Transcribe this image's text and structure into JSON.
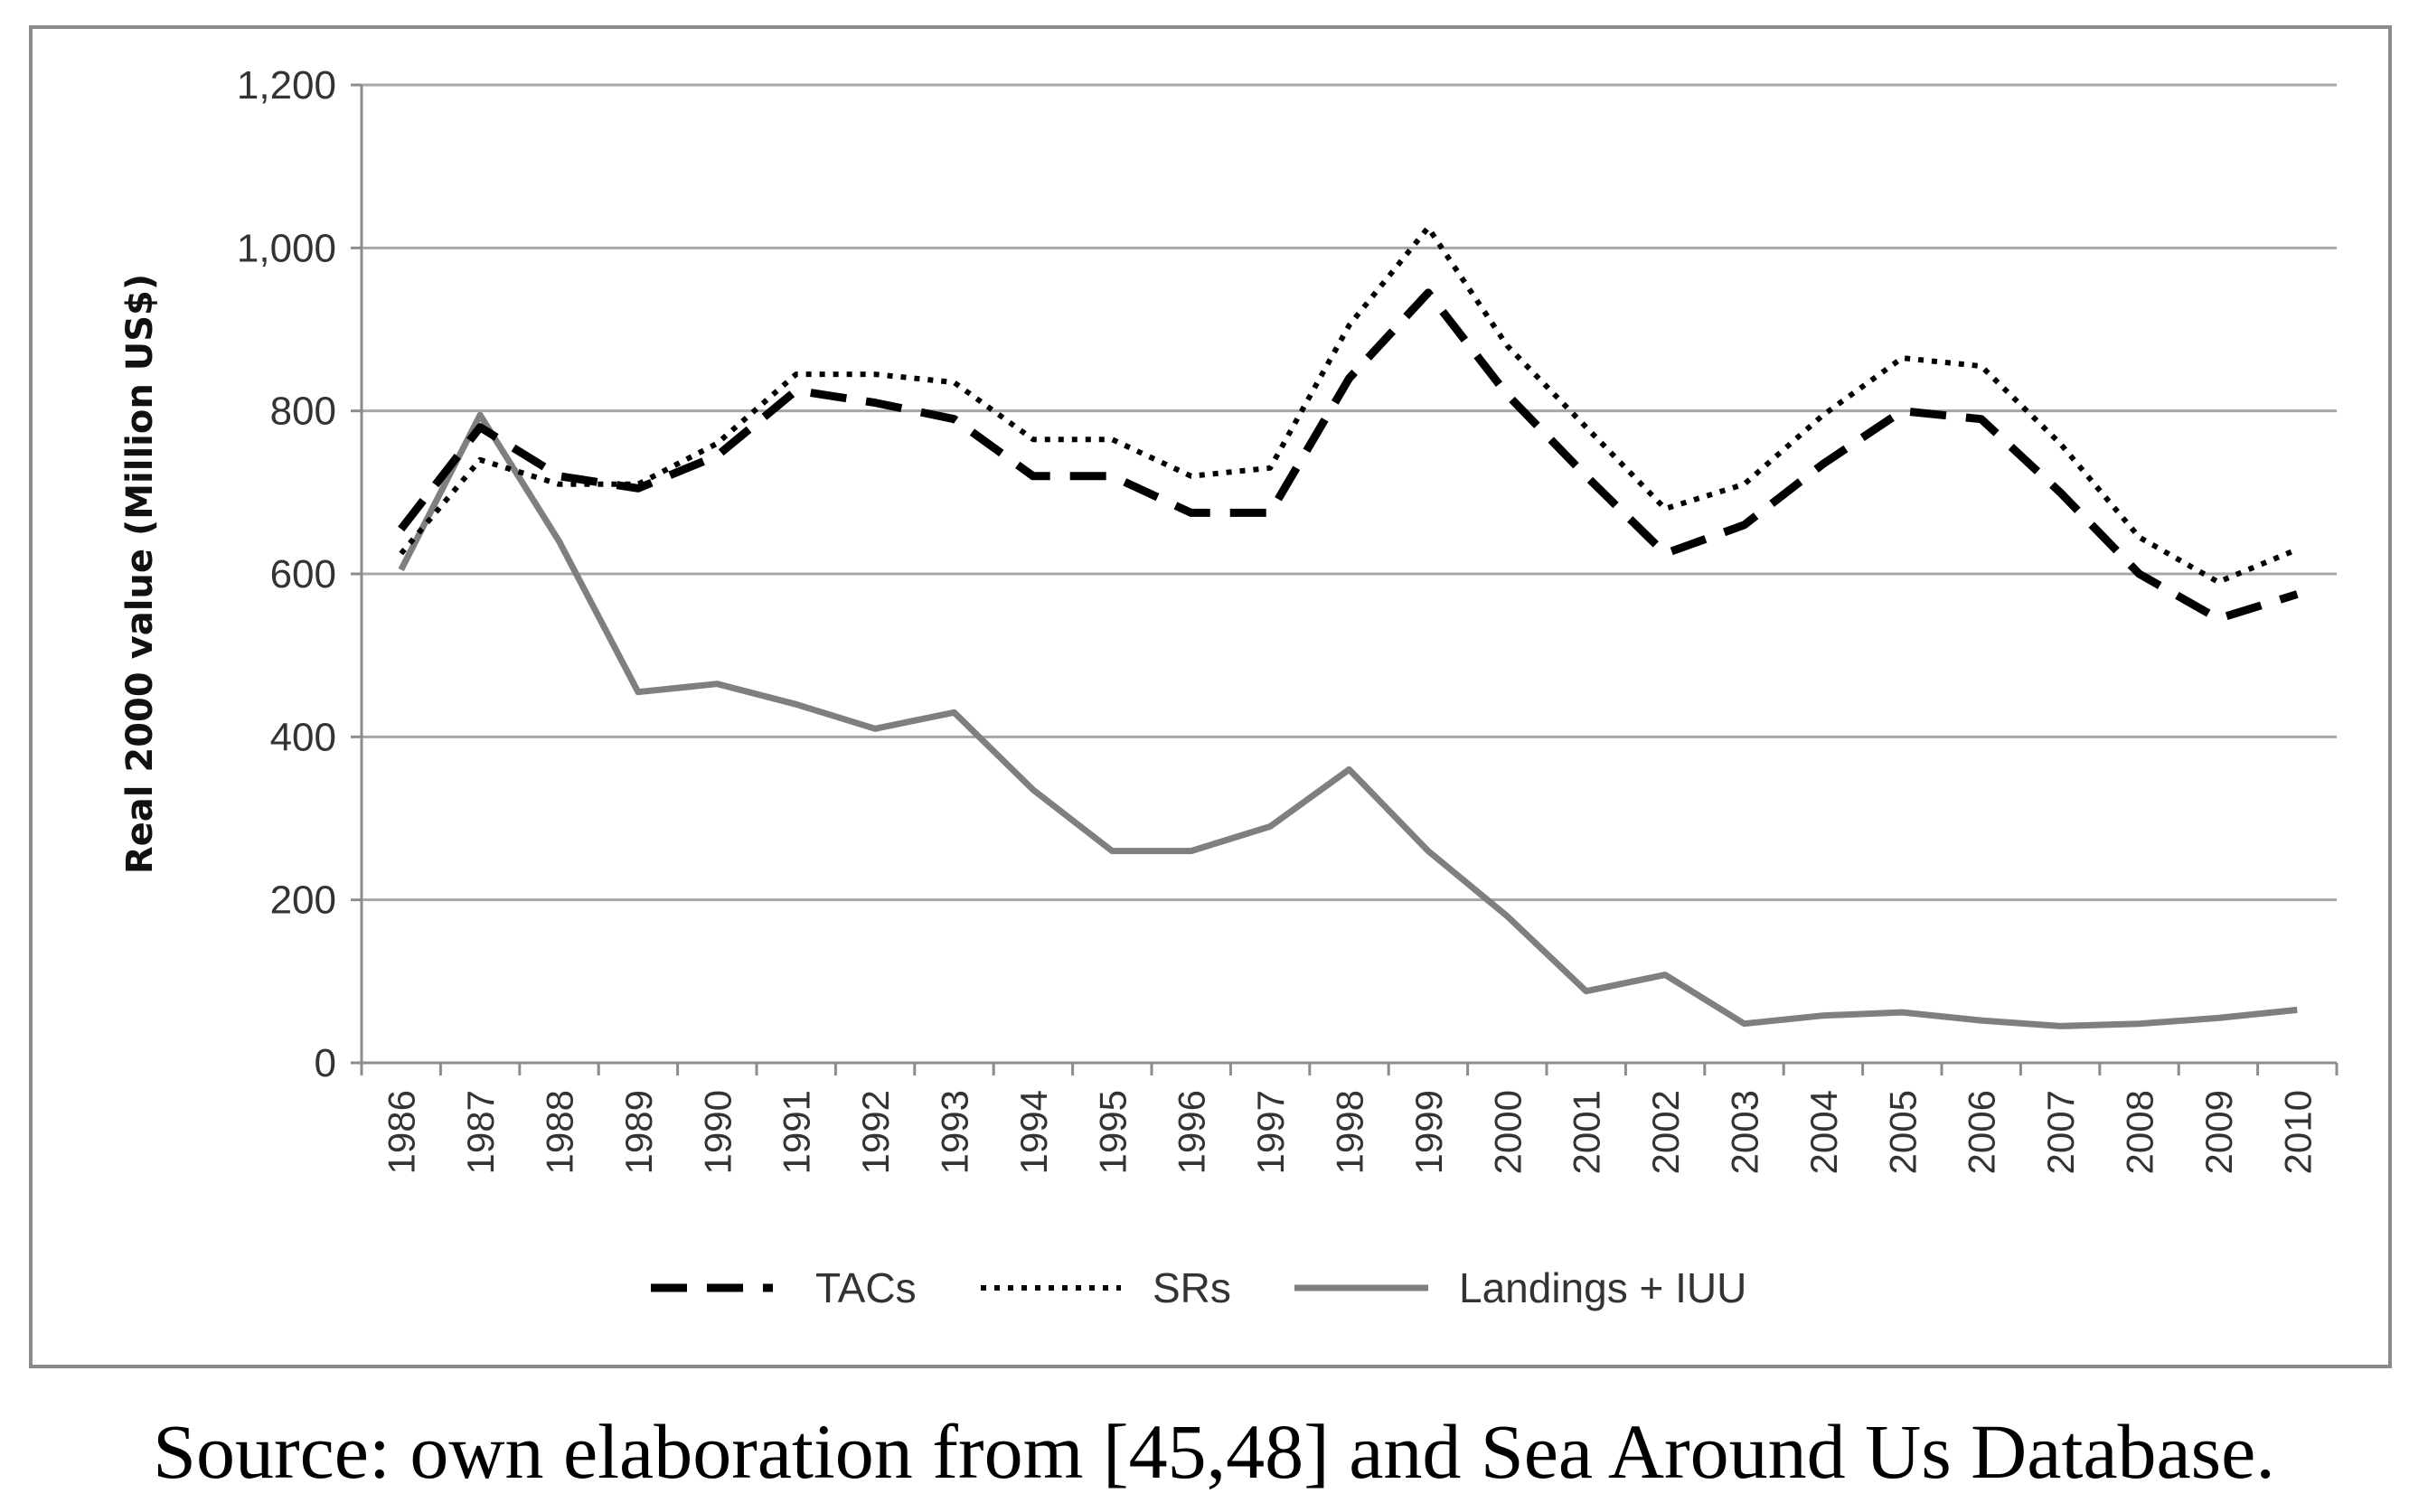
{
  "chart_data": {
    "type": "line",
    "title": "",
    "xlabel": "",
    "ylabel": "Real 2000 value (Million US$)",
    "ylim": [
      0,
      1200
    ],
    "yticks": [
      0,
      200,
      400,
      600,
      800,
      1000,
      1200
    ],
    "ytick_labels": [
      "0",
      "200",
      "400",
      "600",
      "800",
      "1,000",
      "1,200"
    ],
    "grid": "horizontal",
    "legend_position": "bottom",
    "x": [
      "1986",
      "1987",
      "1988",
      "1989",
      "1990",
      "1991",
      "1992",
      "1993",
      "1994",
      "1995",
      "1996",
      "1997",
      "1998",
      "1999",
      "2000",
      "2001",
      "2002",
      "2003",
      "2004",
      "2005",
      "2006",
      "2007",
      "2008",
      "2009",
      "2010"
    ],
    "series": [
      {
        "name": "TACs",
        "style": "dashed",
        "color": "#000000",
        "values": [
          655,
          780,
          720,
          705,
          745,
          825,
          810,
          790,
          720,
          720,
          675,
          675,
          840,
          945,
          820,
          720,
          625,
          660,
          735,
          800,
          790,
          700,
          600,
          545,
          575
        ]
      },
      {
        "name": "SRs",
        "style": "dotted",
        "color": "#000000",
        "values": [
          625,
          740,
          710,
          710,
          760,
          845,
          845,
          835,
          765,
          765,
          720,
          730,
          905,
          1025,
          880,
          780,
          680,
          710,
          795,
          865,
          855,
          760,
          645,
          590,
          630
        ]
      },
      {
        "name": "Landings + IUU",
        "style": "solid",
        "color": "#7f7f7f",
        "values": [
          605,
          795,
          640,
          455,
          465,
          440,
          410,
          430,
          335,
          260,
          260,
          290,
          360,
          260,
          180,
          88,
          108,
          48,
          58,
          62,
          52,
          45,
          48,
          55,
          65
        ]
      }
    ]
  },
  "caption": "Source: own elaboration from [45,48] and Sea Around Us Database."
}
